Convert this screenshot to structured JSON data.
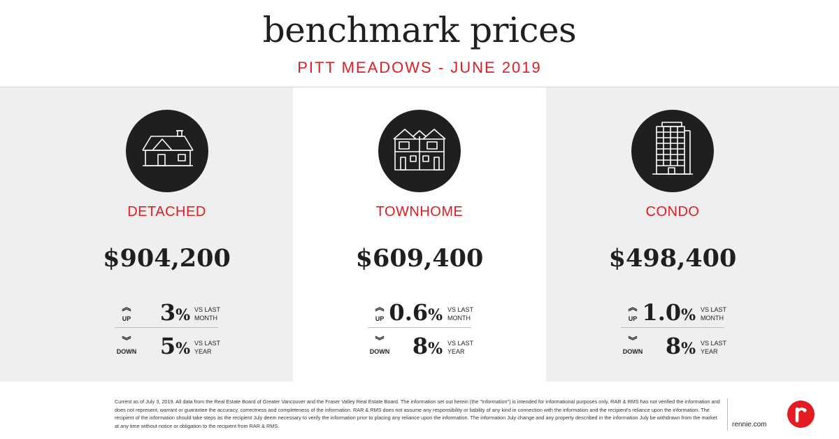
{
  "header": {
    "title": "benchmark prices",
    "subtitle": "PITT MEADOWS - JUNE 2019"
  },
  "panels": [
    {
      "type": "DETACHED",
      "icon": "detached-house-icon",
      "price": "$904,200",
      "month": {
        "direction": "UP",
        "value": "3",
        "unit": "%",
        "label1": "VS LAST",
        "label2": "MONTH"
      },
      "year": {
        "direction": "DOWN",
        "value": "5",
        "unit": "%",
        "label1": "VS LAST",
        "label2": "YEAR"
      }
    },
    {
      "type": "TOWNHOME",
      "icon": "townhome-icon",
      "price": "$609,400",
      "month": {
        "direction": "UP",
        "value": "0.6",
        "unit": "%",
        "label1": "VS LAST",
        "label2": "MONTH"
      },
      "year": {
        "direction": "DOWN",
        "value": "8",
        "unit": "%",
        "label1": "VS LAST",
        "label2": "YEAR"
      }
    },
    {
      "type": "CONDO",
      "icon": "condo-building-icon",
      "price": "$498,400",
      "month": {
        "direction": "UP",
        "value": "1.0",
        "unit": "%",
        "label1": "VS LAST",
        "label2": "MONTH"
      },
      "year": {
        "direction": "DOWN",
        "value": "8",
        "unit": "%",
        "label1": "VS LAST",
        "label2": "YEAR"
      }
    }
  ],
  "symbols": {
    "up_arrow": "︽",
    "down_arrow": "︾"
  },
  "footer": {
    "disclaimer": "Current as of July 3, 2019. All data from the Real Estate Board of Greater Vancouver and the Fraser Valley Real Estate Board. The information set out herein (the \"Information\") is intended for informational purposes only. RAR & RMS has not verified the information and does not represent, warrant or guarantee the accuracy, correctness and completeness of the information. RAR & RMS does not assume any responsibility or liability of any kind in connection with the information and the recipient's reliance upon the information. The recipient of the information should take steps as the recipient July deem necessary to verify the information prior to placing any reliance upon the information. The information July change and any property described in the information July be withdrawn from the market at any time without notice or obligation to the recipient from RAR & RMS.",
    "site": "rennie.com",
    "logo_letter": "r"
  },
  "colors": {
    "accent": "#e31b23",
    "dark": "#1f1f1f",
    "panel_grey": "#efefef"
  }
}
